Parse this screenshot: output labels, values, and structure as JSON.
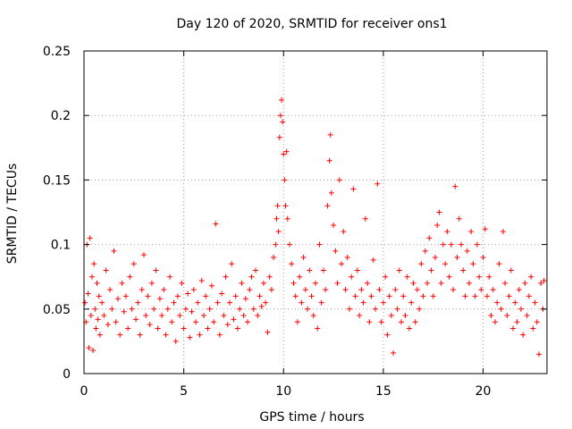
{
  "chart_data": {
    "type": "scatter",
    "title": "Day 120 of 2020, SRMTID for receiver ons1",
    "xlabel": "GPS time / hours",
    "ylabel": "SRMTID / TECUs",
    "xlim": [
      0,
      23.2
    ],
    "ylim": [
      0,
      0.25
    ],
    "x_ticks": [
      0,
      5,
      10,
      15,
      20
    ],
    "x_tick_labels": [
      "0",
      "5",
      "10",
      "15",
      "20"
    ],
    "y_ticks": [
      0,
      0.05,
      0.1,
      0.15,
      0.2,
      0.25
    ],
    "y_tick_labels": [
      "0",
      "0.05",
      "0.1",
      "0.15",
      "0.2",
      "0.25"
    ],
    "grid": true,
    "marker": "+",
    "color": "#ff0000",
    "series": [
      {
        "name": "ons1",
        "points": [
          [
            0.05,
            0.055
          ],
          [
            0.1,
            0.04
          ],
          [
            0.15,
            0.1
          ],
          [
            0.2,
            0.062
          ],
          [
            0.25,
            0.02
          ],
          [
            0.3,
            0.105
          ],
          [
            0.35,
            0.045
          ],
          [
            0.4,
            0.075
          ],
          [
            0.45,
            0.018
          ],
          [
            0.5,
            0.085
          ],
          [
            0.55,
            0.05
          ],
          [
            0.6,
            0.035
          ],
          [
            0.65,
            0.07
          ],
          [
            0.7,
            0.042
          ],
          [
            0.75,
            0.06
          ],
          [
            0.8,
            0.03
          ],
          [
            0.9,
            0.055
          ],
          [
            1.0,
            0.045
          ],
          [
            1.1,
            0.08
          ],
          [
            1.2,
            0.038
          ],
          [
            1.3,
            0.065
          ],
          [
            1.4,
            0.05
          ],
          [
            1.5,
            0.095
          ],
          [
            1.6,
            0.04
          ],
          [
            1.7,
            0.058
          ],
          [
            1.8,
            0.03
          ],
          [
            1.9,
            0.07
          ],
          [
            2.0,
            0.048
          ],
          [
            2.1,
            0.06
          ],
          [
            2.2,
            0.035
          ],
          [
            2.3,
            0.075
          ],
          [
            2.4,
            0.05
          ],
          [
            2.5,
            0.085
          ],
          [
            2.6,
            0.042
          ],
          [
            2.7,
            0.055
          ],
          [
            2.8,
            0.03
          ],
          [
            2.9,
            0.065
          ],
          [
            3.0,
            0.092
          ],
          [
            3.1,
            0.045
          ],
          [
            3.2,
            0.06
          ],
          [
            3.3,
            0.038
          ],
          [
            3.4,
            0.07
          ],
          [
            3.5,
            0.05
          ],
          [
            3.6,
            0.08
          ],
          [
            3.7,
            0.035
          ],
          [
            3.8,
            0.058
          ],
          [
            3.9,
            0.045
          ],
          [
            4.0,
            0.065
          ],
          [
            4.1,
            0.03
          ],
          [
            4.2,
            0.05
          ],
          [
            4.3,
            0.075
          ],
          [
            4.4,
            0.04
          ],
          [
            4.5,
            0.055
          ],
          [
            4.6,
            0.025
          ],
          [
            4.7,
            0.06
          ],
          [
            4.8,
            0.045
          ],
          [
            4.9,
            0.07
          ],
          [
            5.0,
            0.035
          ],
          [
            5.1,
            0.05
          ],
          [
            5.2,
            0.062
          ],
          [
            5.3,
            0.028
          ],
          [
            5.4,
            0.048
          ],
          [
            5.5,
            0.065
          ],
          [
            5.6,
            0.04
          ],
          [
            5.7,
            0.055
          ],
          [
            5.8,
            0.03
          ],
          [
            5.9,
            0.072
          ],
          [
            6.0,
            0.045
          ],
          [
            6.1,
            0.06
          ],
          [
            6.2,
            0.035
          ],
          [
            6.3,
            0.05
          ],
          [
            6.4,
            0.068
          ],
          [
            6.5,
            0.04
          ],
          [
            6.6,
            0.116
          ],
          [
            6.7,
            0.055
          ],
          [
            6.8,
            0.03
          ],
          [
            6.9,
            0.062
          ],
          [
            7.0,
            0.045
          ],
          [
            7.1,
            0.075
          ],
          [
            7.2,
            0.038
          ],
          [
            7.3,
            0.055
          ],
          [
            7.4,
            0.085
          ],
          [
            7.5,
            0.042
          ],
          [
            7.6,
            0.06
          ],
          [
            7.7,
            0.035
          ],
          [
            7.8,
            0.05
          ],
          [
            7.9,
            0.07
          ],
          [
            8.0,
            0.045
          ],
          [
            8.1,
            0.058
          ],
          [
            8.2,
            0.04
          ],
          [
            8.3,
            0.065
          ],
          [
            8.4,
            0.075
          ],
          [
            8.5,
            0.05
          ],
          [
            8.6,
            0.08
          ],
          [
            8.7,
            0.045
          ],
          [
            8.8,
            0.06
          ],
          [
            8.9,
            0.052
          ],
          [
            9.0,
            0.07
          ],
          [
            9.1,
            0.055
          ],
          [
            9.2,
            0.032
          ],
          [
            9.3,
            0.075
          ],
          [
            9.4,
            0.065
          ],
          [
            9.5,
            0.09
          ],
          [
            9.6,
            0.1
          ],
          [
            9.65,
            0.12
          ],
          [
            9.7,
            0.13
          ],
          [
            9.75,
            0.11
          ],
          [
            9.8,
            0.183
          ],
          [
            9.85,
            0.2
          ],
          [
            9.9,
            0.212
          ],
          [
            9.95,
            0.195
          ],
          [
            10.0,
            0.17
          ],
          [
            10.05,
            0.15
          ],
          [
            10.1,
            0.13
          ],
          [
            10.15,
            0.172
          ],
          [
            10.2,
            0.12
          ],
          [
            10.3,
            0.1
          ],
          [
            10.4,
            0.085
          ],
          [
            10.5,
            0.07
          ],
          [
            10.6,
            0.06
          ],
          [
            10.7,
            0.04
          ],
          [
            10.8,
            0.075
          ],
          [
            10.9,
            0.055
          ],
          [
            11.0,
            0.09
          ],
          [
            11.1,
            0.065
          ],
          [
            11.2,
            0.05
          ],
          [
            11.3,
            0.08
          ],
          [
            11.4,
            0.06
          ],
          [
            11.5,
            0.045
          ],
          [
            11.6,
            0.07
          ],
          [
            11.7,
            0.035
          ],
          [
            11.8,
            0.1
          ],
          [
            11.9,
            0.055
          ],
          [
            12.0,
            0.08
          ],
          [
            12.1,
            0.065
          ],
          [
            12.2,
            0.13
          ],
          [
            12.3,
            0.165
          ],
          [
            12.35,
            0.185
          ],
          [
            12.4,
            0.14
          ],
          [
            12.5,
            0.115
          ],
          [
            12.6,
            0.095
          ],
          [
            12.7,
            0.07
          ],
          [
            12.8,
            0.15
          ],
          [
            12.9,
            0.085
          ],
          [
            13.0,
            0.11
          ],
          [
            13.1,
            0.065
          ],
          [
            13.2,
            0.09
          ],
          [
            13.3,
            0.05
          ],
          [
            13.4,
            0.075
          ],
          [
            13.5,
            0.143
          ],
          [
            13.6,
            0.06
          ],
          [
            13.7,
            0.08
          ],
          [
            13.8,
            0.045
          ],
          [
            13.9,
            0.065
          ],
          [
            14.0,
            0.055
          ],
          [
            14.1,
            0.12
          ],
          [
            14.2,
            0.07
          ],
          [
            14.3,
            0.04
          ],
          [
            14.4,
            0.06
          ],
          [
            14.5,
            0.088
          ],
          [
            14.6,
            0.05
          ],
          [
            14.7,
            0.147
          ],
          [
            14.8,
            0.065
          ],
          [
            14.9,
            0.04
          ],
          [
            15.0,
            0.055
          ],
          [
            15.1,
            0.075
          ],
          [
            15.2,
            0.03
          ],
          [
            15.3,
            0.06
          ],
          [
            15.4,
            0.045
          ],
          [
            15.5,
            0.016
          ],
          [
            15.6,
            0.065
          ],
          [
            15.7,
            0.05
          ],
          [
            15.8,
            0.08
          ],
          [
            15.9,
            0.04
          ],
          [
            16.0,
            0.06
          ],
          [
            16.1,
            0.045
          ],
          [
            16.2,
            0.075
          ],
          [
            16.3,
            0.035
          ],
          [
            16.4,
            0.055
          ],
          [
            16.5,
            0.07
          ],
          [
            16.6,
            0.04
          ],
          [
            16.7,
            0.065
          ],
          [
            16.8,
            0.05
          ],
          [
            16.9,
            0.085
          ],
          [
            17.0,
            0.06
          ],
          [
            17.1,
            0.095
          ],
          [
            17.2,
            0.07
          ],
          [
            17.3,
            0.105
          ],
          [
            17.4,
            0.08
          ],
          [
            17.5,
            0.06
          ],
          [
            17.6,
            0.09
          ],
          [
            17.7,
            0.115
          ],
          [
            17.8,
            0.125
          ],
          [
            17.9,
            0.07
          ],
          [
            18.0,
            0.1
          ],
          [
            18.1,
            0.085
          ],
          [
            18.2,
            0.11
          ],
          [
            18.3,
            0.075
          ],
          [
            18.4,
            0.1
          ],
          [
            18.5,
            0.065
          ],
          [
            18.6,
            0.145
          ],
          [
            18.7,
            0.09
          ],
          [
            18.8,
            0.12
          ],
          [
            18.9,
            0.1
          ],
          [
            19.0,
            0.08
          ],
          [
            19.1,
            0.06
          ],
          [
            19.2,
            0.095
          ],
          [
            19.3,
            0.07
          ],
          [
            19.4,
            0.11
          ],
          [
            19.5,
            0.085
          ],
          [
            19.6,
            0.06
          ],
          [
            19.7,
            0.1
          ],
          [
            19.8,
            0.075
          ],
          [
            19.9,
            0.065
          ],
          [
            20.0,
            0.09
          ],
          [
            20.1,
            0.112
          ],
          [
            20.2,
            0.06
          ],
          [
            20.3,
            0.075
          ],
          [
            20.4,
            0.045
          ],
          [
            20.5,
            0.065
          ],
          [
            20.6,
            0.04
          ],
          [
            20.7,
            0.055
          ],
          [
            20.8,
            0.085
          ],
          [
            20.9,
            0.05
          ],
          [
            21.0,
            0.11
          ],
          [
            21.1,
            0.07
          ],
          [
            21.2,
            0.045
          ],
          [
            21.3,
            0.06
          ],
          [
            21.4,
            0.08
          ],
          [
            21.5,
            0.035
          ],
          [
            21.6,
            0.055
          ],
          [
            21.7,
            0.04
          ],
          [
            21.8,
            0.065
          ],
          [
            21.9,
            0.05
          ],
          [
            22.0,
            0.03
          ],
          [
            22.1,
            0.07
          ],
          [
            22.2,
            0.045
          ],
          [
            22.3,
            0.06
          ],
          [
            22.4,
            0.075
          ],
          [
            22.5,
            0.035
          ],
          [
            22.6,
            0.055
          ],
          [
            22.7,
            0.04
          ],
          [
            22.8,
            0.015
          ],
          [
            22.9,
            0.07
          ],
          [
            23.0,
            0.05
          ],
          [
            23.05,
            0.072
          ]
        ]
      }
    ]
  }
}
